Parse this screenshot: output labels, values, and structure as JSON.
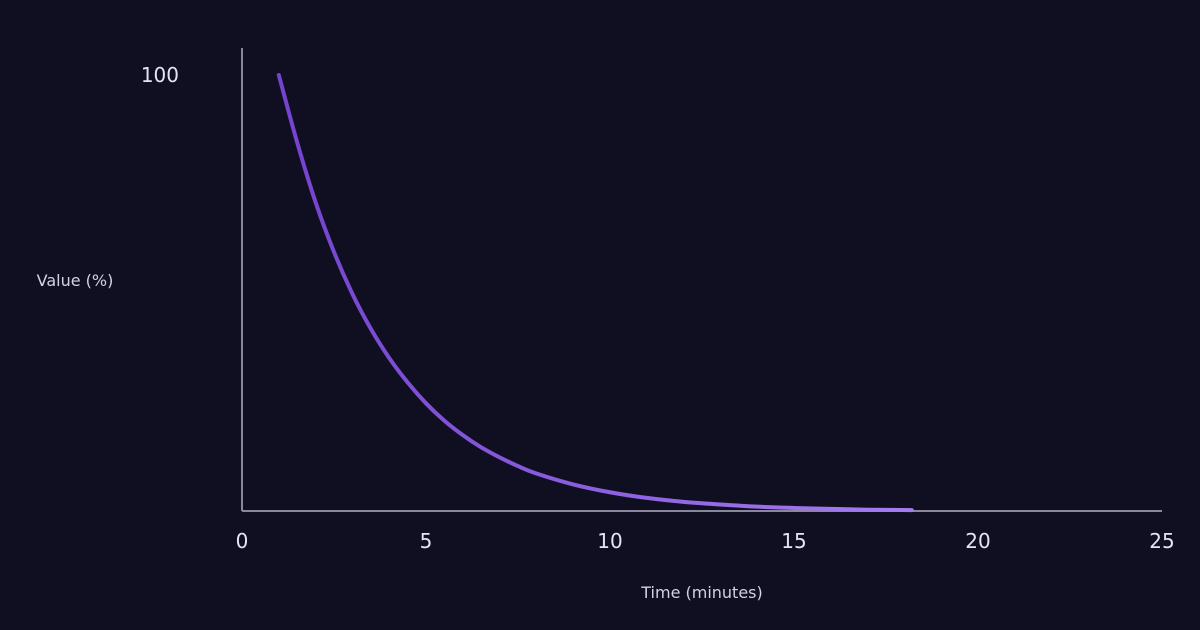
{
  "chart_data": {
    "type": "line",
    "xlabel": "Time (minutes)",
    "ylabel": "Value (%)",
    "xlim": [
      0,
      25
    ],
    "ylim": [
      0,
      100
    ],
    "x_ticks": [
      "0",
      "5",
      "10",
      "15",
      "20",
      "25"
    ],
    "y_ticks": [
      "100"
    ],
    "grid": false,
    "colors": {
      "background": "#100f22",
      "axis": "#8a879c",
      "line_start": "#7443cf",
      "line_end": "#a57cf0",
      "text": "#e6e3f2"
    },
    "series": [
      {
        "x": [
          1,
          1.5,
          2,
          2.5,
          3,
          3.5,
          4,
          4.5,
          5,
          5.5,
          6,
          6.5,
          7,
          7.5,
          8,
          9,
          10,
          11,
          12,
          13,
          14,
          15,
          16,
          17,
          18.2
        ],
        "y": [
          100,
          84.5,
          70.8,
          59.4,
          49.8,
          41.8,
          35.1,
          29.5,
          24.7,
          20.7,
          17.4,
          14.6,
          12.3,
          10.3,
          8.6,
          6.1,
          4.3,
          3.0,
          2.1,
          1.5,
          1.0,
          0.7,
          0.5,
          0.3,
          0.2
        ]
      }
    ]
  }
}
